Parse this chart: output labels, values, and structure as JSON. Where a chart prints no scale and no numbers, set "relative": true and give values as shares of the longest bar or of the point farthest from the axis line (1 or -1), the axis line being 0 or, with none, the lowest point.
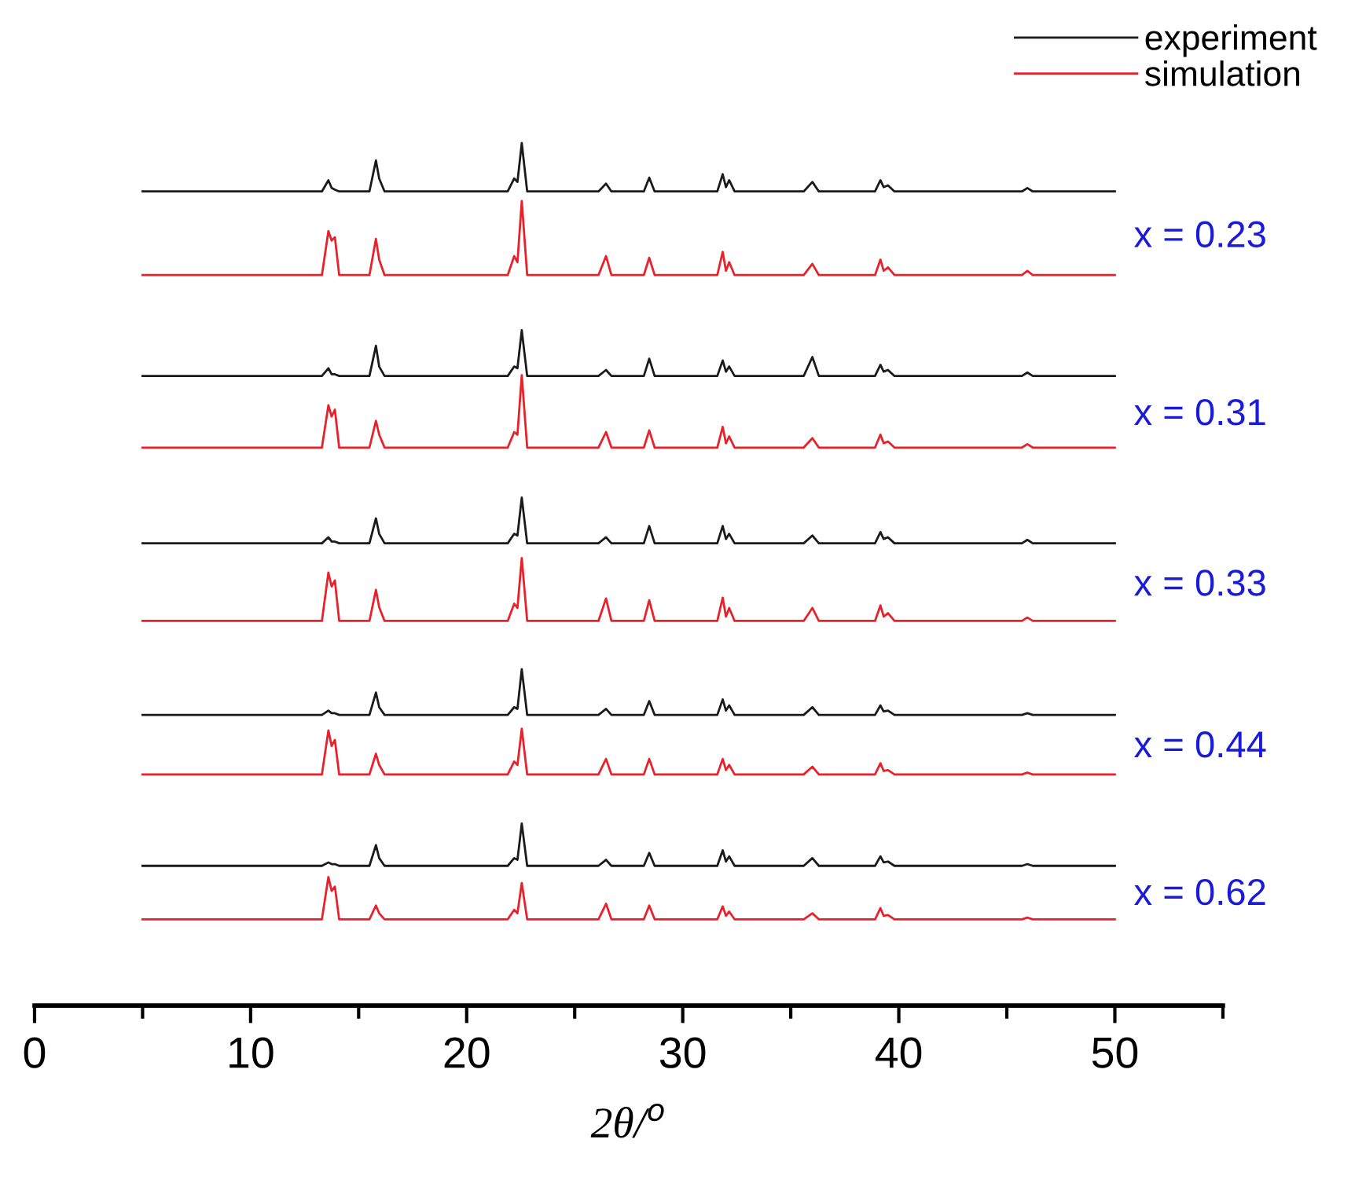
{
  "chart_data": {
    "type": "line",
    "relative": true,
    "xlabel": "2θ/$^{o}$",
    "x": [
      5,
      13.3,
      13.6,
      13.75,
      13.9,
      14.1,
      15.5,
      15.8,
      15.95,
      16.2,
      21.9,
      22.2,
      22.35,
      22.55,
      22.8,
      26.1,
      26.45,
      26.7,
      28.2,
      28.45,
      28.7,
      31.6,
      31.85,
      32.0,
      32.15,
      32.4,
      35.6,
      36.0,
      36.3,
      38.9,
      39.15,
      39.3,
      39.5,
      39.8,
      45.7,
      45.95,
      46.2,
      50
    ],
    "xlim": [
      0,
      55
    ],
    "xticks": [
      0,
      {
        "value": 5,
        "label": null
      },
      10,
      {
        "value": 15,
        "label": null
      },
      20,
      {
        "value": 25,
        "label": null
      },
      30,
      {
        "value": 35,
        "label": null
      },
      40,
      {
        "value": 45,
        "label": null
      },
      50,
      {
        "value": 55,
        "label": null
      }
    ],
    "grid": false,
    "legend": "top right",
    "marker": "none",
    "line_style": "solid",
    "series": [
      {
        "name": "experiment",
        "color": "#1a1a1a",
        "values": [
          0.944,
          0.944,
          0.957,
          0.948,
          0.946,
          0.944,
          0.944,
          0.98,
          0.959,
          0.944,
          0.944,
          0.959,
          0.955,
          1.0,
          0.944,
          0.944,
          0.953,
          0.944,
          0.944,
          0.96,
          0.944,
          0.944,
          0.964,
          0.949,
          0.957,
          0.944,
          0.944,
          0.955,
          0.944,
          0.944,
          0.957,
          0.949,
          0.951,
          0.944,
          0.944,
          0.948,
          0.944,
          0.944
        ]
      },
      {
        "name": "simulation",
        "color": "#e8212a",
        "values": [
          0.847,
          0.847,
          0.898,
          0.887,
          0.891,
          0.847,
          0.847,
          0.889,
          0.865,
          0.847,
          0.847,
          0.869,
          0.862,
          0.933,
          0.847,
          0.847,
          0.869,
          0.847,
          0.847,
          0.867,
          0.847,
          0.847,
          0.874,
          0.852,
          0.862,
          0.847,
          0.847,
          0.86,
          0.847,
          0.847,
          0.865,
          0.852,
          0.856,
          0.847,
          0.847,
          0.852,
          0.847,
          0.847
        ]
      },
      {
        "color": "#1a1a1a",
        "values": [
          0.73,
          0.73,
          0.739,
          0.732,
          0.732,
          0.73,
          0.73,
          0.765,
          0.741,
          0.73,
          0.73,
          0.741,
          0.739,
          0.783,
          0.73,
          0.73,
          0.737,
          0.73,
          0.73,
          0.75,
          0.73,
          0.73,
          0.748,
          0.735,
          0.741,
          0.73,
          0.73,
          0.752,
          0.73,
          0.73,
          0.743,
          0.735,
          0.737,
          0.73,
          0.73,
          0.734,
          0.73,
          0.73
        ]
      },
      {
        "color": "#e8212a",
        "values": [
          0.647,
          0.647,
          0.696,
          0.683,
          0.691,
          0.647,
          0.647,
          0.678,
          0.662,
          0.647,
          0.647,
          0.665,
          0.662,
          0.731,
          0.647,
          0.647,
          0.665,
          0.647,
          0.647,
          0.667,
          0.647,
          0.647,
          0.671,
          0.652,
          0.66,
          0.647,
          0.647,
          0.658,
          0.647,
          0.647,
          0.662,
          0.652,
          0.654,
          0.647,
          0.647,
          0.651,
          0.647,
          0.647
        ]
      },
      {
        "color": "#1a1a1a",
        "values": [
          0.536,
          0.536,
          0.543,
          0.538,
          0.538,
          0.536,
          0.536,
          0.565,
          0.547,
          0.536,
          0.536,
          0.547,
          0.545,
          0.589,
          0.536,
          0.536,
          0.543,
          0.536,
          0.536,
          0.556,
          0.536,
          0.536,
          0.556,
          0.541,
          0.547,
          0.536,
          0.536,
          0.545,
          0.536,
          0.536,
          0.549,
          0.541,
          0.543,
          0.536,
          0.536,
          0.54,
          0.536,
          0.536
        ]
      },
      {
        "color": "#e8212a",
        "values": [
          0.446,
          0.446,
          0.502,
          0.486,
          0.493,
          0.446,
          0.446,
          0.482,
          0.462,
          0.446,
          0.446,
          0.466,
          0.461,
          0.519,
          0.446,
          0.446,
          0.472,
          0.446,
          0.446,
          0.47,
          0.446,
          0.446,
          0.473,
          0.451,
          0.461,
          0.446,
          0.446,
          0.461,
          0.446,
          0.446,
          0.464,
          0.451,
          0.455,
          0.446,
          0.446,
          0.45,
          0.446,
          0.446
        ]
      },
      {
        "color": "#1a1a1a",
        "values": [
          0.337,
          0.337,
          0.342,
          0.339,
          0.339,
          0.337,
          0.337,
          0.363,
          0.346,
          0.337,
          0.337,
          0.346,
          0.344,
          0.39,
          0.337,
          0.337,
          0.344,
          0.337,
          0.337,
          0.353,
          0.337,
          0.337,
          0.355,
          0.342,
          0.348,
          0.337,
          0.337,
          0.346,
          0.337,
          0.337,
          0.348,
          0.341,
          0.342,
          0.337,
          0.337,
          0.339,
          0.337,
          0.337
        ]
      },
      {
        "color": "#e8212a",
        "values": [
          0.268,
          0.268,
          0.319,
          0.301,
          0.308,
          0.268,
          0.268,
          0.292,
          0.279,
          0.268,
          0.268,
          0.283,
          0.279,
          0.321,
          0.268,
          0.268,
          0.286,
          0.268,
          0.268,
          0.286,
          0.268,
          0.268,
          0.286,
          0.273,
          0.279,
          0.268,
          0.268,
          0.277,
          0.268,
          0.268,
          0.281,
          0.272,
          0.273,
          0.268,
          0.268,
          0.27,
          0.268,
          0.268
        ]
      },
      {
        "color": "#1a1a1a",
        "values": [
          0.162,
          0.162,
          0.166,
          0.164,
          0.164,
          0.162,
          0.162,
          0.186,
          0.171,
          0.162,
          0.162,
          0.171,
          0.169,
          0.211,
          0.162,
          0.162,
          0.169,
          0.162,
          0.162,
          0.177,
          0.162,
          0.162,
          0.18,
          0.167,
          0.173,
          0.162,
          0.162,
          0.171,
          0.162,
          0.162,
          0.173,
          0.166,
          0.167,
          0.162,
          0.162,
          0.164,
          0.162,
          0.162
        ]
      },
      {
        "color": "#e8212a",
        "values": [
          0.1,
          0.1,
          0.149,
          0.133,
          0.138,
          0.1,
          0.1,
          0.116,
          0.107,
          0.1,
          0.1,
          0.111,
          0.107,
          0.142,
          0.1,
          0.1,
          0.118,
          0.1,
          0.1,
          0.116,
          0.1,
          0.1,
          0.115,
          0.104,
          0.109,
          0.1,
          0.1,
          0.107,
          0.1,
          0.1,
          0.113,
          0.104,
          0.105,
          0.1,
          0.1,
          0.102,
          0.1,
          0.1
        ]
      }
    ],
    "annotations": [
      "x = 0.23",
      "x = 0.31",
      "x = 0.33",
      "x = 0.44",
      "x = 0.62"
    ]
  }
}
